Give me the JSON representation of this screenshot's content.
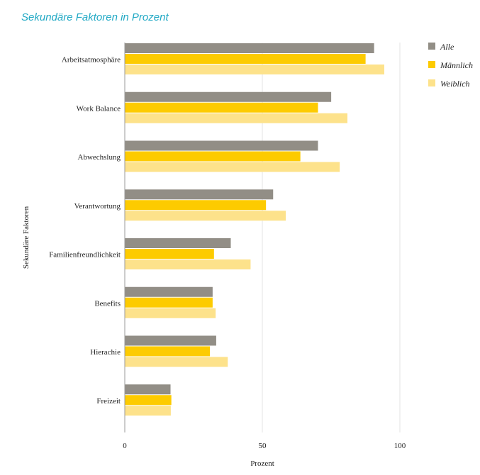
{
  "chart_data": {
    "type": "bar",
    "orientation": "horizontal",
    "title": "Sekundäre Faktoren in Prozent",
    "xlabel": "Prozent",
    "ylabel": "Sekundäre Faktoren",
    "xlim": [
      0,
      100
    ],
    "xticks": [
      "0",
      "50",
      "100"
    ],
    "grid": true,
    "legend_position": "top-right",
    "categories": [
      "Arbeitsatmosphäre",
      "Work Balance",
      "Abwechslung",
      "Verantwortung",
      "Familienfreundlichkeit",
      "Benefits",
      "Hierachie",
      "Freizeit"
    ],
    "series": [
      {
        "name": "Alle",
        "color": "#928e86",
        "values": [
          90.5,
          74.9,
          70.1,
          53.8,
          38.4,
          31.8,
          33.1,
          16.5
        ]
      },
      {
        "name": "Männlich",
        "color": "#fdcb00",
        "values": [
          87.4,
          70.1,
          63.7,
          51.2,
          32.3,
          31.8,
          30.8,
          16.8
        ]
      },
      {
        "name": "Weiblich",
        "color": "#fde28b",
        "values": [
          94.2,
          80.8,
          78.0,
          58.4,
          45.6,
          32.9,
          37.3,
          16.6
        ]
      }
    ]
  }
}
